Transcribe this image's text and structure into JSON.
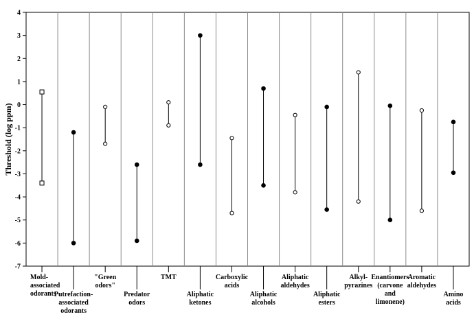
{
  "chart_data": {
    "type": "range",
    "ylabel": "Threshold (log ppm)",
    "ylim": [
      -7,
      4
    ],
    "yticks": [
      "4",
      "3",
      "2",
      "1",
      "0",
      "-1",
      "-2",
      "-3",
      "-4",
      "-5",
      "-6",
      "-7"
    ],
    "grid": "vertical separators between categories",
    "categories": [
      {
        "label": [
          "Mold-",
          "associated",
          "odorants"
        ],
        "label_pos": "top",
        "low": -3.4,
        "high": 0.55,
        "marker": "square"
      },
      {
        "label": [
          "Putrefaction-",
          "associated",
          "odorants"
        ],
        "label_pos": "bottom",
        "low": -6.0,
        "high": -1.2,
        "marker": "filled"
      },
      {
        "label": [
          "\"Green",
          "odors\""
        ],
        "label_pos": "top",
        "low": -1.7,
        "high": -0.1,
        "marker": "open"
      },
      {
        "label": [
          "Predator",
          "odors"
        ],
        "label_pos": "bottom",
        "low": -5.9,
        "high": -2.6,
        "marker": "filled"
      },
      {
        "label": [
          "TMT"
        ],
        "label_pos": "top",
        "low": -0.9,
        "high": 0.1,
        "marker": "open"
      },
      {
        "label": [
          "Aliphatic",
          "ketones"
        ],
        "label_pos": "bottom",
        "low": -2.6,
        "high": 3.0,
        "marker": "filled"
      },
      {
        "label": [
          "Carboxylic",
          "acids"
        ],
        "label_pos": "top",
        "low": -4.7,
        "high": -1.45,
        "marker": "open"
      },
      {
        "label": [
          "Aliphatic",
          "alcohols"
        ],
        "label_pos": "bottom",
        "low": -3.5,
        "high": 0.7,
        "marker": "filled"
      },
      {
        "label": [
          "Aliphatic",
          "aldehydes"
        ],
        "label_pos": "top",
        "low": -3.8,
        "high": -0.45,
        "marker": "open"
      },
      {
        "label": [
          "Aliphatic",
          "esters"
        ],
        "label_pos": "bottom",
        "low": -4.55,
        "high": -0.1,
        "marker": "filled"
      },
      {
        "label": [
          "Alkyl-",
          "pyrazines"
        ],
        "label_pos": "top",
        "low": -4.2,
        "high": 1.4,
        "marker": "open"
      },
      {
        "label": [
          "Enantiomers",
          "(carvone",
          "and",
          "limonene)"
        ],
        "label_pos": "top",
        "low": -5.0,
        "high": -0.05,
        "marker": "filled"
      },
      {
        "label": [
          "Aromatic",
          "aldehydes"
        ],
        "label_pos": "top",
        "low": -4.6,
        "high": -0.25,
        "marker": "open"
      },
      {
        "label": [
          "Amino",
          "acids"
        ],
        "label_pos": "bottom",
        "low": -2.95,
        "high": -0.75,
        "marker": "filled"
      }
    ]
  }
}
